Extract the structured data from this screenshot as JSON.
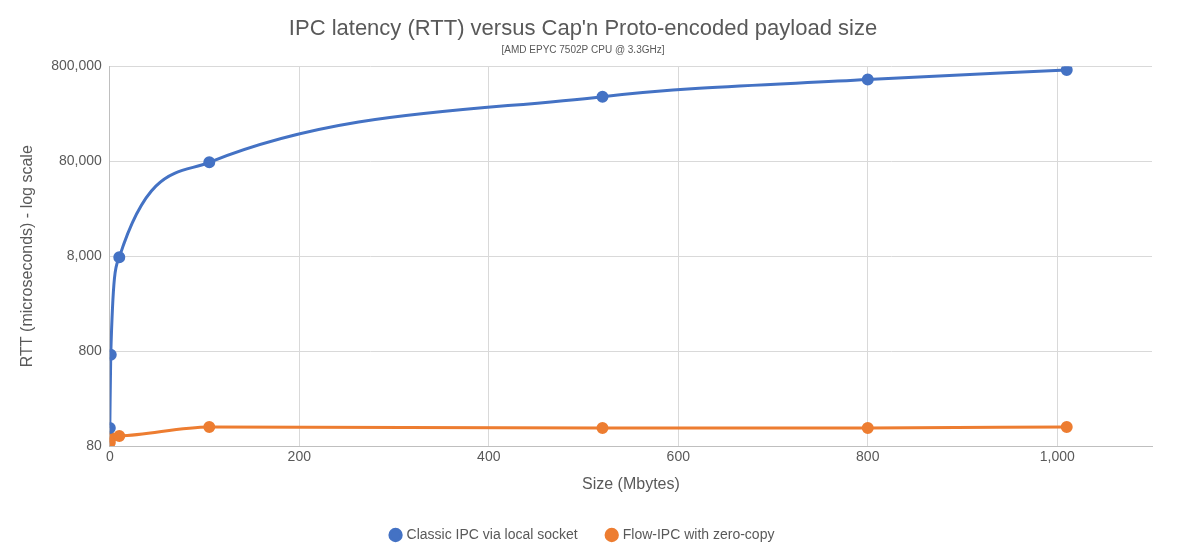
{
  "chart_data": {
    "type": "line",
    "title": "IPC latency (RTT) versus Cap'n Proto-encoded payload size",
    "subtitle": "[AMD EPYC 7502P CPU @ 3.3GHz]",
    "x_label": "Size (Mbytes)",
    "y_label": "RTT (microseconds) - log scale",
    "x": [
      0,
      1,
      10,
      105,
      520,
      800,
      1010
    ],
    "series": [
      {
        "name": "Classic IPC via local socket",
        "color": "#4472c4",
        "marker": "circle",
        "line_style": "solid",
        "values": [
          124,
          733,
          7780,
          78000,
          384000,
          581000,
          733000
        ]
      },
      {
        "name": "Flow-IPC with zero-copy",
        "color": "#ed7d31",
        "marker": "circle",
        "line_style": "solid",
        "values": [
          87,
          98,
          102,
          127,
          124,
          124,
          127
        ]
      }
    ],
    "xlim": [
      0,
      1100
    ],
    "xticks": [
      0,
      200,
      400,
      600,
      800,
      {
        "value": 1000,
        "label": "1,000"
      }
    ],
    "ylim": [
      80,
      800000
    ],
    "yticks": [
      80,
      800,
      {
        "value": 8000,
        "label": "8,000"
      },
      {
        "value": 80000,
        "label": "80,000"
      },
      {
        "value": 800000,
        "label": "800,000"
      }
    ],
    "log": "y",
    "grid": true,
    "legend": "bottom"
  }
}
